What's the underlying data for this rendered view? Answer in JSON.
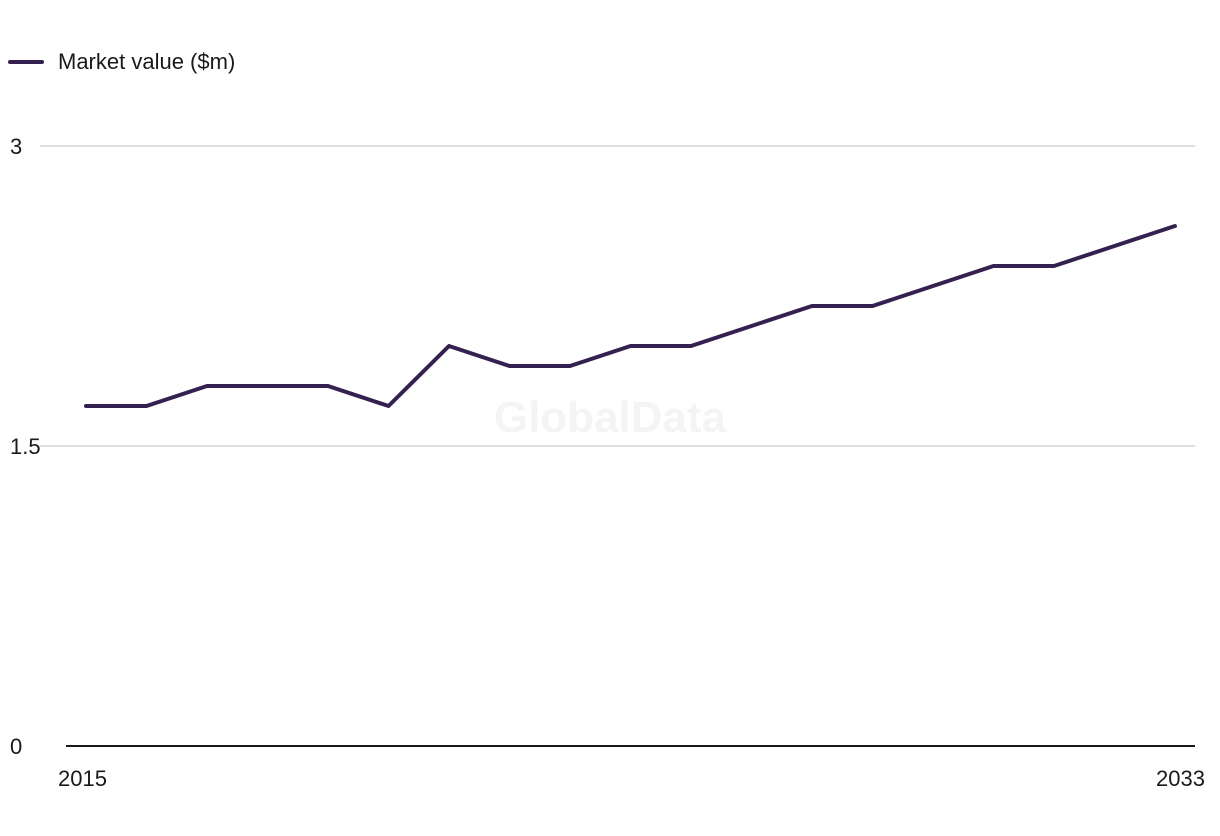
{
  "watermark": "GlobalData",
  "chart_data": {
    "type": "line",
    "title": "",
    "xlabel": "",
    "ylabel": "",
    "x": [
      2015,
      2016,
      2017,
      2018,
      2019,
      2020,
      2021,
      2022,
      2023,
      2024,
      2025,
      2026,
      2027,
      2028,
      2029,
      2030,
      2031,
      2032,
      2033
    ],
    "x_tick_labels": [
      "2015",
      "2033"
    ],
    "y_tick_labels": [
      "3",
      "1.5",
      "0"
    ],
    "y_ticks": [
      3,
      1.5,
      0
    ],
    "ylim": [
      0,
      3
    ],
    "xlim": [
      2015,
      2033
    ],
    "grid": true,
    "legend_position": "top-left",
    "series": [
      {
        "name": "Market value ($m)",
        "color": "#35214f",
        "values": [
          1.7,
          1.7,
          1.8,
          1.8,
          1.8,
          1.7,
          2.0,
          1.9,
          1.9,
          2.0,
          2.0,
          2.1,
          2.2,
          2.2,
          2.3,
          2.4,
          2.4,
          2.5,
          2.6
        ]
      }
    ]
  }
}
